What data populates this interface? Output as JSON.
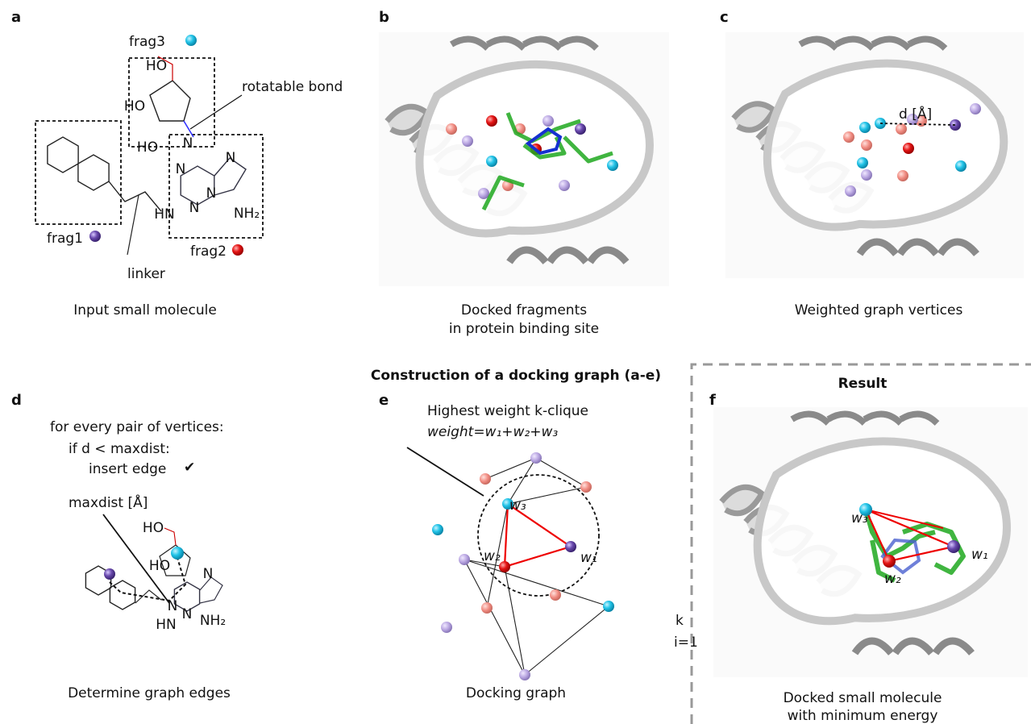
{
  "panel_labels": [
    "a",
    "b",
    "c",
    "d",
    "e",
    "f"
  ],
  "title": "Construction of a docking graph (a-e)",
  "panel_a": {
    "labels": [
      "frag3",
      "rotatable bond",
      "frag1",
      "frag2",
      "linker"
    ],
    "atoms": [
      "HO",
      "HO",
      "HO",
      "N",
      "N",
      "N",
      "N",
      "N",
      "HN",
      "NH₂"
    ],
    "caption": "Input small molecule"
  },
  "panel_b": {
    "caption": [
      "Docked fragments",
      "in protein binding site"
    ]
  },
  "panel_c": {
    "distance": "d [Å]",
    "caption": "Weighted graph vertices"
  },
  "panel_d": {
    "lines": [
      "for every pair of vertices:",
      "if d < maxdist:",
      "insert edge"
    ],
    "check": "✔",
    "maxdist": "maxdist [Å]",
    "atoms": [
      "HO",
      "HO",
      "N",
      "N",
      "N",
      "HN",
      "NH₂"
    ],
    "caption": "Determine graph edges"
  },
  "panel_e": {
    "heading": "Highest weight k-clique",
    "formula": "weight=w₁+w₂+w₃",
    "weights": [
      "w₃",
      "w₂",
      "w₁"
    ],
    "caption": "Docking graph"
  },
  "stray": [
    "k",
    "i=1"
  ],
  "panel_f": {
    "heading": "Result",
    "weights": [
      "w₃",
      "w₂",
      "w₁"
    ],
    "caption": [
      "Docked small molecule",
      "with minimum energy"
    ]
  }
}
